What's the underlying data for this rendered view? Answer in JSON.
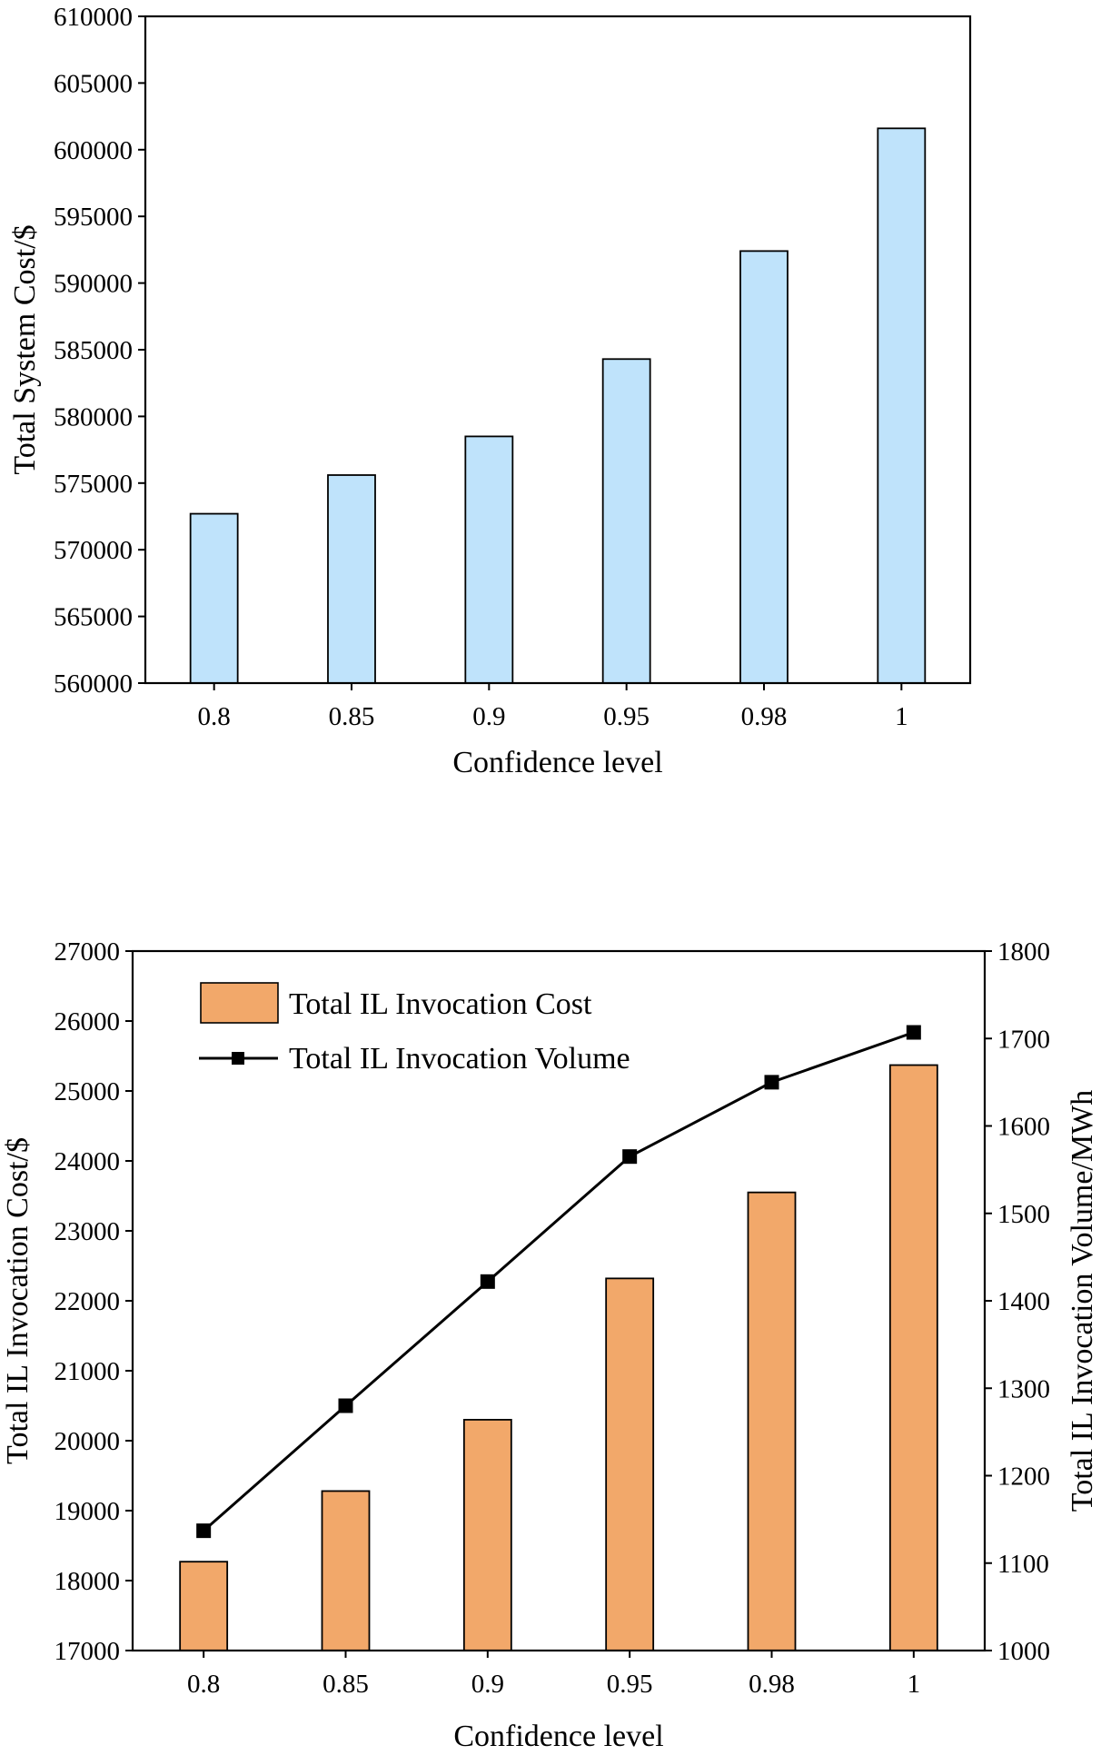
{
  "chart_data": [
    {
      "type": "bar",
      "categories": [
        "0.8",
        "0.85",
        "0.9",
        "0.95",
        "0.98",
        "1"
      ],
      "values": [
        572700,
        575600,
        578500,
        584300,
        592400,
        601600
      ],
      "xlabel": "Confidence level",
      "ylabel": "Total System Cost/$",
      "ylim": [
        560000,
        610000
      ],
      "yticks": [
        "560000",
        "565000",
        "570000",
        "575000",
        "580000",
        "585000",
        "590000",
        "595000",
        "600000",
        "605000",
        "610000"
      ],
      "bar_color": "#bfe3fb"
    },
    {
      "type": "bar+line",
      "categories": [
        "0.8",
        "0.85",
        "0.9",
        "0.95",
        "0.98",
        "1"
      ],
      "series": [
        {
          "name": "Total IL Invocation Cost",
          "type": "bar",
          "axis": "left",
          "values": [
            18270,
            19280,
            20300,
            22320,
            23550,
            25370
          ],
          "color": "#f2a86a"
        },
        {
          "name": "Total IL Invocation Volume",
          "type": "line",
          "axis": "right",
          "values": [
            1137,
            1280,
            1422,
            1565,
            1650,
            1707
          ],
          "color": "#000000"
        }
      ],
      "xlabel": "Confidence level",
      "ylabel_left": "Total IL Invocation Cost/$",
      "ylabel_right": "Total IL Invocation Volume/MWh",
      "ylim_left": [
        17000,
        27000
      ],
      "ylim_right": [
        1000,
        1800
      ],
      "yticks_left": [
        "17000",
        "18000",
        "19000",
        "20000",
        "21000",
        "22000",
        "23000",
        "24000",
        "25000",
        "26000",
        "27000"
      ],
      "yticks_right": [
        "1000",
        "1100",
        "1200",
        "1300",
        "1400",
        "1500",
        "1600",
        "1700",
        "1800"
      ],
      "legend_position": "top-left"
    }
  ]
}
